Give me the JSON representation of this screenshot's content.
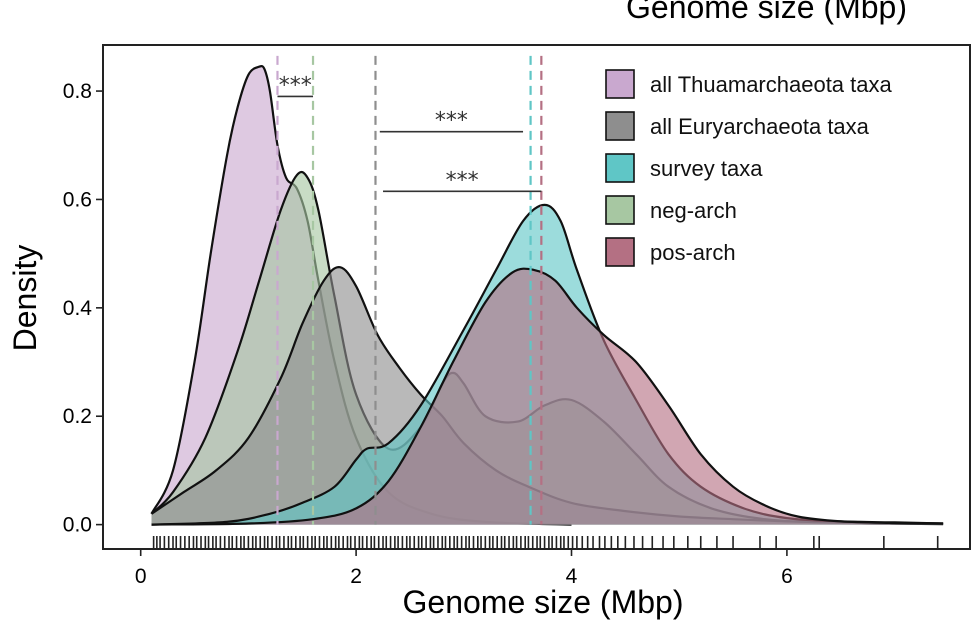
{
  "top_title": "Genome size (Mbp)",
  "chart_data": {
    "type": "density",
    "xlabel": "Genome size (Mbp)",
    "ylabel": "Density",
    "xlim": [
      -0.35,
      7.7
    ],
    "ylim": [
      -0.045,
      0.885
    ],
    "x_ticks": [
      0,
      2,
      4,
      6
    ],
    "y_ticks": [
      0.0,
      0.2,
      0.4,
      0.6,
      0.8
    ],
    "y_tick_labels": [
      "0.0",
      "0.2",
      "0.4",
      "0.6",
      "0.8"
    ],
    "grid": false,
    "legend_position": "top-right",
    "series": [
      {
        "name": "all Thuamarchaeota taxa",
        "color": "#c9a8cf",
        "median": 1.27,
        "x": [
          0.1,
          0.3,
          0.5,
          0.65,
          0.8,
          0.9,
          1.0,
          1.1,
          1.15,
          1.2,
          1.27,
          1.35,
          1.45,
          1.55,
          1.65,
          1.8,
          2.0,
          2.3,
          2.7,
          3.2,
          4.0
        ],
        "y": [
          0.02,
          0.1,
          0.3,
          0.5,
          0.68,
          0.77,
          0.83,
          0.845,
          0.84,
          0.8,
          0.7,
          0.64,
          0.62,
          0.56,
          0.45,
          0.3,
          0.16,
          0.06,
          0.02,
          0.005,
          0.0
        ]
      },
      {
        "name": "all Euryarchaeota taxa",
        "color": "#8e8e8e",
        "median": 2.18,
        "x": [
          0.1,
          0.4,
          0.7,
          1.0,
          1.3,
          1.5,
          1.7,
          1.85,
          2.0,
          2.2,
          2.4,
          2.6,
          2.8,
          3.0,
          3.3,
          3.6,
          4.0,
          4.5,
          5.0,
          5.5,
          6.0,
          6.5,
          7.0,
          7.45
        ],
        "y": [
          0.02,
          0.06,
          0.1,
          0.16,
          0.27,
          0.37,
          0.45,
          0.475,
          0.44,
          0.35,
          0.29,
          0.24,
          0.2,
          0.15,
          0.1,
          0.07,
          0.04,
          0.025,
          0.015,
          0.01,
          0.006,
          0.004,
          0.003,
          0.002
        ]
      },
      {
        "name": "survey taxa",
        "color": "#5fc6c6",
        "median": 3.62,
        "x": [
          0.1,
          0.8,
          1.2,
          1.5,
          1.8,
          2.0,
          2.1,
          2.3,
          2.6,
          3.0,
          3.3,
          3.55,
          3.75,
          3.9,
          4.05,
          4.3,
          4.6,
          4.9,
          5.2,
          5.6,
          6.0,
          6.5,
          7.0,
          7.45
        ],
        "y": [
          0.0,
          0.005,
          0.02,
          0.04,
          0.07,
          0.12,
          0.14,
          0.15,
          0.22,
          0.36,
          0.47,
          0.56,
          0.59,
          0.56,
          0.47,
          0.34,
          0.23,
          0.13,
          0.07,
          0.03,
          0.012,
          0.006,
          0.004,
          0.002
        ]
      },
      {
        "name": "neg-arch",
        "color": "#a7c7a2",
        "median": 1.6,
        "x": [
          0.1,
          0.3,
          0.6,
          0.9,
          1.1,
          1.3,
          1.45,
          1.55,
          1.65,
          1.8,
          2.0,
          2.3,
          2.6,
          2.8,
          2.9,
          3.0,
          3.2,
          3.5,
          3.75,
          4.0,
          4.3,
          4.6,
          4.9,
          5.3,
          5.8,
          6.5,
          7.45
        ],
        "y": [
          0.02,
          0.06,
          0.16,
          0.32,
          0.45,
          0.58,
          0.645,
          0.64,
          0.58,
          0.42,
          0.24,
          0.14,
          0.18,
          0.26,
          0.28,
          0.26,
          0.2,
          0.19,
          0.22,
          0.23,
          0.19,
          0.13,
          0.07,
          0.03,
          0.01,
          0.003,
          0.001
        ]
      },
      {
        "name": "pos-arch",
        "color": "#b47083",
        "median": 3.72,
        "x": [
          0.1,
          1.0,
          1.6,
          2.0,
          2.3,
          2.6,
          2.9,
          3.2,
          3.45,
          3.65,
          3.85,
          4.05,
          4.3,
          4.6,
          4.9,
          5.2,
          5.5,
          5.8,
          6.1,
          6.5,
          7.0,
          7.45
        ],
        "y": [
          0.0,
          0.002,
          0.01,
          0.03,
          0.08,
          0.18,
          0.3,
          0.41,
          0.465,
          0.47,
          0.45,
          0.4,
          0.35,
          0.3,
          0.22,
          0.13,
          0.07,
          0.035,
          0.015,
          0.006,
          0.003,
          0.002
        ]
      }
    ],
    "significance_brackets": [
      {
        "label": "***",
        "x1": 1.27,
        "x2": 1.6,
        "y": 0.79
      },
      {
        "label": "***",
        "x1": 2.22,
        "x2": 3.55,
        "y": 0.725
      },
      {
        "label": "***",
        "x1": 2.25,
        "x2": 3.72,
        "y": 0.615
      }
    ],
    "rug_x": [
      0.12,
      0.15,
      0.18,
      0.22,
      0.26,
      0.3,
      0.33,
      0.37,
      0.41,
      0.45,
      0.49,
      0.52,
      0.56,
      0.6,
      0.63,
      0.67,
      0.7,
      0.74,
      0.78,
      0.82,
      0.85,
      0.89,
      0.93,
      0.96,
      1.0,
      1.04,
      1.07,
      1.11,
      1.15,
      1.18,
      1.22,
      1.26,
      1.29,
      1.33,
      1.37,
      1.4,
      1.44,
      1.48,
      1.51,
      1.55,
      1.59,
      1.62,
      1.66,
      1.7,
      1.73,
      1.77,
      1.81,
      1.84,
      1.88,
      1.92,
      1.95,
      1.99,
      2.03,
      2.06,
      2.1,
      2.14,
      2.17,
      2.21,
      2.25,
      2.28,
      2.32,
      2.36,
      2.39,
      2.43,
      2.47,
      2.5,
      2.54,
      2.58,
      2.61,
      2.65,
      2.69,
      2.72,
      2.76,
      2.8,
      2.83,
      2.87,
      2.91,
      2.94,
      2.98,
      3.02,
      3.05,
      3.09,
      3.13,
      3.16,
      3.2,
      3.24,
      3.27,
      3.31,
      3.35,
      3.38,
      3.42,
      3.46,
      3.49,
      3.53,
      3.57,
      3.6,
      3.64,
      3.68,
      3.71,
      3.75,
      3.79,
      3.82,
      3.86,
      3.9,
      3.93,
      3.97,
      4.01,
      4.05,
      4.1,
      4.15,
      4.2,
      4.26,
      4.31,
      4.37,
      4.43,
      4.5,
      4.58,
      4.66,
      4.75,
      4.85,
      4.95,
      5.08,
      5.2,
      5.35,
      5.5,
      5.75,
      5.9,
      6.25,
      6.3,
      6.9,
      7.4
    ]
  }
}
